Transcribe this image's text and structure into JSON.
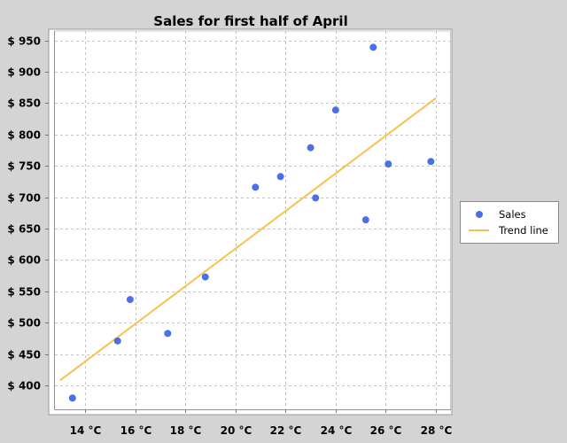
{
  "chart_data": {
    "type": "scatter",
    "title": "Sales for first half of April",
    "xlabel": "",
    "ylabel": "",
    "xlim": [
      12.8,
      28.6
    ],
    "ylim": [
      362,
      965
    ],
    "x_ticks": [
      14,
      16,
      18,
      20,
      22,
      24,
      26,
      28
    ],
    "x_tick_labels": [
      "14 °C",
      "16 °C",
      "18 °C",
      "20 °C",
      "22 °C",
      "24 °C",
      "26 °C",
      "28 °C"
    ],
    "y_ticks": [
      400,
      450,
      500,
      550,
      600,
      650,
      700,
      750,
      800,
      850,
      900,
      950
    ],
    "y_tick_labels": [
      "$ 400",
      "$ 450",
      "$ 500",
      "$ 550",
      "$ 600",
      "$ 650",
      "$ 700",
      "$ 750",
      "$ 800",
      "$ 850",
      "$ 900",
      "$ 950"
    ],
    "grid": true,
    "legend_position": "right",
    "series": [
      {
        "name": "Sales",
        "type": "scatter",
        "color": "#4a6fe8",
        "points": [
          {
            "x": 13.5,
            "y": 380
          },
          {
            "x": 15.3,
            "y": 471
          },
          {
            "x": 15.8,
            "y": 537
          },
          {
            "x": 17.3,
            "y": 483
          },
          {
            "x": 18.8,
            "y": 573
          },
          {
            "x": 20.8,
            "y": 716
          },
          {
            "x": 21.8,
            "y": 733
          },
          {
            "x": 23.0,
            "y": 779
          },
          {
            "x": 23.2,
            "y": 699
          },
          {
            "x": 24.0,
            "y": 839
          },
          {
            "x": 25.2,
            "y": 664
          },
          {
            "x": 25.5,
            "y": 939
          },
          {
            "x": 26.1,
            "y": 753
          },
          {
            "x": 27.8,
            "y": 757
          }
        ]
      },
      {
        "name": "Trend line",
        "type": "line",
        "color": "#f5c24c",
        "points": [
          {
            "x": 13.0,
            "y": 408
          },
          {
            "x": 28.0,
            "y": 858
          }
        ]
      }
    ]
  }
}
